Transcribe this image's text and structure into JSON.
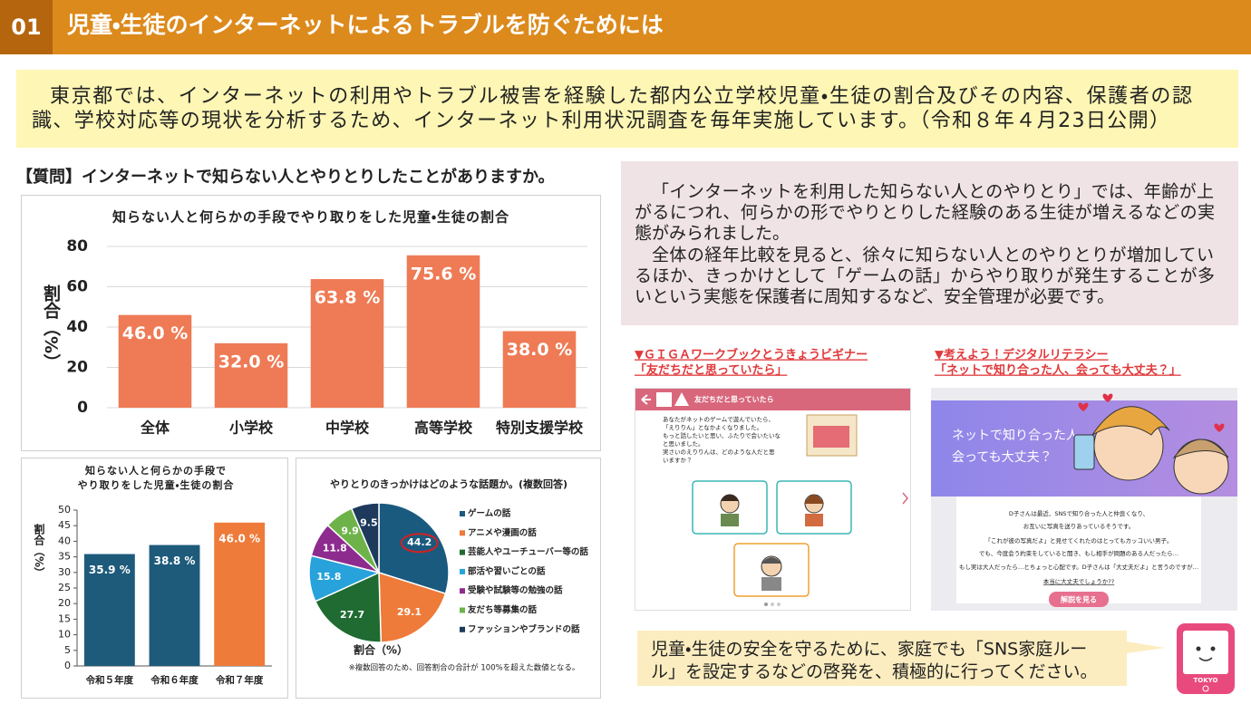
{
  "header": {
    "number": "01",
    "title": "児童・生徒のインターネットによるトラブルを防ぐためには"
  },
  "intro": {
    "lines": [
      "東京都では、インターネットの利用やトラブル被害を経験した都内公立学校児童・生徒の割合及びその内容、保護者の認",
      "識、学校対応等の現状を分析するため、インターネット利用状況調査を毎年実施しています。（令和８年４月23日公開）"
    ]
  },
  "question": "【質問】インターネットで知らない人とやりとりしたことがありますか。",
  "chart_data": [
    {
      "type": "bar",
      "title": [
        "知らない人と何らかの手段でやり取りをした児童・生徒の割合"
      ],
      "ylabel": "割合（%）",
      "categories": [
        "全体",
        "小学校",
        "中学校",
        "高等学校",
        "特別支援学校"
      ],
      "values": [
        46.0,
        32.0,
        63.8,
        75.6,
        38.0
      ],
      "value_labels": [
        "46.0 %",
        "32.0 %",
        "63.8 %",
        "75.6 %",
        "38.0 %"
      ],
      "color": "#ee7b55",
      "ylim": [
        0,
        80
      ],
      "yticks": [
        0,
        20,
        40,
        60,
        80
      ],
      "grid": true
    },
    {
      "type": "bar",
      "title": [
        "知らない人と何らかの手段で",
        "やり取りをした児童・生徒の割合"
      ],
      "ylabel": "割合（%）",
      "categories": [
        "令和５年度",
        "令和６年度",
        "令和７年度"
      ],
      "values": [
        35.9,
        38.8,
        46.0
      ],
      "value_labels": [
        "35.9 %",
        "38.8 %",
        "46.0 %"
      ],
      "colors": [
        "#1e5b7b",
        "#1e5b7b",
        "#ee7b3a"
      ],
      "ylim": [
        0,
        50
      ],
      "yticks": [
        0,
        5,
        10,
        15,
        20,
        25,
        30,
        35,
        40,
        45,
        50
      ],
      "grid": false
    },
    {
      "type": "pie",
      "title": [
        "やりとりのきっかけはどのような話題か。(複数回答)"
      ],
      "xlabel": "割合（%）",
      "note": "※複数回答のため、回答割合の合計が 100%を超えた数値となる。",
      "categories": [
        "ゲームの話",
        "アニメや漫画の話",
        "芸能人やユーチューバー等の話",
        "部活や習いごとの話",
        "受験や試験等の勉強の話",
        "友だち等募集の話",
        "ファッションやブランドの話"
      ],
      "values": [
        44.2,
        29.1,
        27.7,
        15.8,
        11.8,
        9.9,
        9.5
      ],
      "colors": [
        "#1b5a7f",
        "#ee7b3a",
        "#1f6b32",
        "#27a2da",
        "#8e2b8f",
        "#6db34a",
        "#1d3a5c"
      ]
    }
  ],
  "summary": {
    "paragraphs": [
      [
        "「インターネットを利用した知らない人とのやりとり」では、年齢が上",
        "がるにつれ、何らかの形でやりとりした経験のある生徒が増えるなどの実",
        "態がみられました。"
      ],
      [
        "全体の経年比較を見ると、徐々に知らない人とのやりとりが増加してい",
        "るほか、きっかけとして「ゲームの話」からやり取りが発生することが多",
        "いという実態を保護者に周知するなど、安全管理が必要です。"
      ]
    ]
  },
  "resources": [
    {
      "series_title": "▼ＧＩＧＡワークブックとうきょうビギナー",
      "title": "「友だちだと思っていたら」",
      "screen": {
        "heading": "友だちだと思っていたら",
        "lines": [
          "あなたがネットのゲームで遊んでいたら、",
          "「えりりん」となかよくなりました。",
          "もっと話したいと思い、ふたりで会いたいな",
          "と思いました。",
          "実さいのえりりんは、どのような人だと思",
          "いますか？"
        ]
      }
    },
    {
      "series_title": "▼考えよう！デジタルリテラシー",
      "title": "「ネットで知り合った人、会っても大丈夫？」",
      "screen": {
        "heading": [
          "ネットで知り合った人、",
          "会っても大丈夫？"
        ],
        "lines": [
          "D子さんは最近、SNSで知り合った人と仲良くなり、",
          "お互いに写真を送りあっているそうです。",
          "「これが彼の写真だよ」と見せてくれたのはとってもカッコいい男子。",
          "でも、今度会う約束をしていると聞き、もし相手が問題のある人だったら…",
          "もし実は大人だったら…とちょっと心配です。D子さんは「大丈夫だよ」と言うのですが…",
          "本当に大丈夫でしょうか??"
        ],
        "button": "解説を見る"
      }
    }
  ],
  "footer": {
    "lines": [
      "児童・生徒の安全を守るために、家庭でも「SNS家庭ルー",
      "ル」を設定するなどの啓発を、積極的に行ってください。"
    ],
    "icon_label": "TOKYO"
  }
}
